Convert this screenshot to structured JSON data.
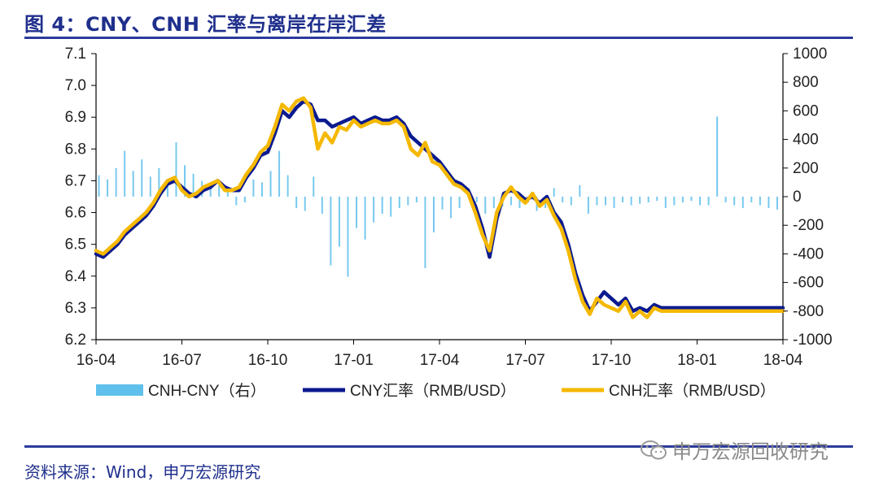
{
  "header": {
    "title": "图 4：CNY、CNH 汇率与离岸在岸汇差"
  },
  "footer": {
    "source": "资料来源：Wind，申万宏源研究"
  },
  "watermark": {
    "text": "申万宏源回收研究"
  },
  "colors": {
    "title": "#1f2f8c",
    "rule": "#2b3a9c",
    "cny": "#0b1a8f",
    "cnh": "#f5b800",
    "spread": "#5fc0ec"
  },
  "chart_data": {
    "type": "line",
    "x_ticks": [
      "16-04",
      "16-07",
      "16-10",
      "17-01",
      "17-04",
      "17-07",
      "17-10",
      "18-01",
      "18-04"
    ],
    "y_left": {
      "ticks": [
        "7.1",
        "7.0",
        "6.9",
        "6.8",
        "6.7",
        "6.6",
        "6.5",
        "6.4",
        "6.3",
        "6.2"
      ],
      "range": [
        6.2,
        7.1
      ]
    },
    "y_right": {
      "ticks": [
        "1000",
        "800",
        "600",
        "400",
        "200",
        "0",
        "-200",
        "-400",
        "-600",
        "-800",
        "-1000"
      ],
      "range": [
        -1000,
        1000
      ]
    },
    "legend": [
      "CNH-CNY（右）",
      "CNY汇率（RMB/USD）",
      "CNH汇率（RMB/USD）"
    ],
    "series": [
      {
        "name": "CNY汇率（RMB/USD）",
        "axis": "left",
        "x": [
          0,
          0.25,
          0.5,
          0.75,
          1.0,
          1.25,
          1.5,
          1.75,
          2.0,
          2.25,
          2.5,
          2.75,
          3.0,
          3.25,
          3.5,
          3.75,
          4.0,
          4.25,
          4.5,
          4.75,
          5.0,
          5.25,
          5.5,
          5.75,
          6.0,
          6.25,
          6.5,
          6.75,
          7.0,
          7.25,
          7.5,
          7.75,
          8.0,
          8.25,
          8.5,
          8.75,
          9.0,
          9.25,
          9.5,
          9.75,
          10.0,
          10.25,
          10.5,
          10.75,
          11.0,
          11.25,
          11.5,
          11.75,
          12.0,
          12.25,
          12.5,
          12.75,
          13.0,
          13.25,
          13.5,
          13.75,
          14.0,
          14.25,
          14.5,
          14.75,
          15.0,
          15.25,
          15.5,
          15.75,
          16.0,
          16.25,
          16.5,
          16.75,
          17.0,
          17.25,
          17.5,
          17.75,
          18.0,
          18.25,
          18.5,
          18.75,
          19.0,
          19.25,
          19.5,
          19.75,
          20.0,
          20.25,
          20.5,
          20.75,
          21.0,
          21.25,
          21.5,
          21.75,
          22.0,
          22.25,
          22.5,
          22.75,
          23.0,
          23.25,
          23.5,
          23.75,
          24.0
        ],
        "values": [
          6.47,
          6.46,
          6.48,
          6.5,
          6.53,
          6.55,
          6.57,
          6.59,
          6.62,
          6.66,
          6.69,
          6.7,
          6.68,
          6.66,
          6.65,
          6.67,
          6.68,
          6.7,
          6.68,
          6.67,
          6.67,
          6.71,
          6.74,
          6.78,
          6.79,
          6.85,
          6.92,
          6.9,
          6.93,
          6.95,
          6.94,
          6.89,
          6.89,
          6.87,
          6.88,
          6.89,
          6.9,
          6.88,
          6.89,
          6.9,
          6.89,
          6.89,
          6.9,
          6.88,
          6.84,
          6.82,
          6.8,
          6.78,
          6.76,
          6.73,
          6.7,
          6.69,
          6.67,
          6.62,
          6.55,
          6.46,
          6.58,
          6.66,
          6.67,
          6.66,
          6.64,
          6.65,
          6.63,
          6.65,
          6.6,
          6.57,
          6.5,
          6.41,
          6.34,
          6.29,
          6.32,
          6.35,
          6.33,
          6.31,
          6.33,
          6.29,
          6.3,
          6.29,
          6.31,
          6.3,
          6.3,
          6.3,
          6.3,
          6.3,
          6.3,
          6.3,
          6.3,
          6.3,
          6.3,
          6.3,
          6.3,
          6.3,
          6.3,
          6.3,
          6.3,
          6.3,
          6.3
        ]
      },
      {
        "name": "CNH汇率（RMB/USD）",
        "axis": "left",
        "x": [
          0,
          0.25,
          0.5,
          0.75,
          1.0,
          1.25,
          1.5,
          1.75,
          2.0,
          2.25,
          2.5,
          2.75,
          3.0,
          3.25,
          3.5,
          3.75,
          4.0,
          4.25,
          4.5,
          4.75,
          5.0,
          5.25,
          5.5,
          5.75,
          6.0,
          6.25,
          6.5,
          6.75,
          7.0,
          7.25,
          7.5,
          7.75,
          8.0,
          8.25,
          8.5,
          8.75,
          9.0,
          9.25,
          9.5,
          9.75,
          10.0,
          10.25,
          10.5,
          10.75,
          11.0,
          11.25,
          11.5,
          11.75,
          12.0,
          12.25,
          12.5,
          12.75,
          13.0,
          13.25,
          13.5,
          13.75,
          14.0,
          14.25,
          14.5,
          14.75,
          15.0,
          15.25,
          15.5,
          15.75,
          16.0,
          16.25,
          16.5,
          16.75,
          17.0,
          17.25,
          17.5,
          17.75,
          18.0,
          18.25,
          18.5,
          18.75,
          19.0,
          19.25,
          19.5,
          19.75,
          20.0,
          20.25,
          20.5,
          20.75,
          21.0,
          21.25,
          21.5,
          21.75,
          22.0,
          22.25,
          22.5,
          22.75,
          23.0,
          23.25,
          23.5,
          23.75,
          24.0
        ],
        "values": [
          6.48,
          6.47,
          6.49,
          6.51,
          6.54,
          6.56,
          6.58,
          6.6,
          6.63,
          6.67,
          6.7,
          6.71,
          6.67,
          6.65,
          6.66,
          6.68,
          6.69,
          6.7,
          6.67,
          6.67,
          6.68,
          6.72,
          6.75,
          6.79,
          6.81,
          6.87,
          6.94,
          6.92,
          6.95,
          6.96,
          6.93,
          6.8,
          6.85,
          6.82,
          6.87,
          6.86,
          6.89,
          6.87,
          6.88,
          6.89,
          6.88,
          6.88,
          6.89,
          6.87,
          6.8,
          6.78,
          6.82,
          6.76,
          6.75,
          6.72,
          6.69,
          6.68,
          6.66,
          6.6,
          6.53,
          6.48,
          6.6,
          6.65,
          6.68,
          6.65,
          6.63,
          6.66,
          6.62,
          6.64,
          6.59,
          6.55,
          6.48,
          6.39,
          6.32,
          6.28,
          6.33,
          6.31,
          6.3,
          6.29,
          6.32,
          6.27,
          6.29,
          6.27,
          6.3,
          6.29,
          6.29,
          6.29,
          6.29,
          6.29,
          6.29,
          6.29,
          6.29,
          6.29,
          6.29,
          6.29,
          6.29,
          6.29,
          6.29,
          6.29,
          6.29,
          6.29,
          6.29
        ]
      },
      {
        "name": "CNH-CNY（右）",
        "axis": "right",
        "type": "bar",
        "x": [
          0.1,
          0.4,
          0.7,
          1.0,
          1.3,
          1.6,
          1.9,
          2.2,
          2.5,
          2.8,
          3.1,
          3.4,
          3.7,
          4.0,
          4.3,
          4.6,
          4.9,
          5.2,
          5.5,
          5.8,
          6.1,
          6.4,
          6.7,
          7.0,
          7.3,
          7.6,
          7.9,
          8.2,
          8.5,
          8.8,
          9.1,
          9.4,
          9.7,
          10.0,
          10.3,
          10.6,
          10.9,
          11.2,
          11.5,
          11.8,
          12.1,
          12.4,
          12.7,
          13.0,
          13.3,
          13.6,
          13.9,
          14.2,
          14.5,
          14.8,
          15.1,
          15.4,
          15.7,
          16.0,
          16.3,
          16.6,
          16.9,
          17.2,
          17.5,
          17.8,
          18.1,
          18.4,
          18.7,
          19.0,
          19.3,
          19.6,
          19.9,
          20.2,
          20.5,
          20.8,
          21.1,
          21.4,
          21.7,
          22.0,
          22.3,
          22.6,
          22.9,
          23.2,
          23.5,
          23.8
        ],
        "values": [
          150,
          120,
          200,
          320,
          180,
          260,
          140,
          200,
          120,
          380,
          220,
          160,
          110,
          90,
          80,
          60,
          -60,
          -40,
          120,
          100,
          180,
          320,
          150,
          -80,
          -100,
          140,
          -120,
          -480,
          -350,
          -560,
          -220,
          -300,
          -180,
          -120,
          -140,
          -80,
          -60,
          -40,
          -500,
          -250,
          -90,
          -150,
          -80,
          60,
          -40,
          -120,
          -80,
          -70,
          -60,
          -80,
          -40,
          -100,
          -80,
          60,
          -40,
          -60,
          80,
          -120,
          -60,
          -60,
          -80,
          -40,
          -60,
          -50,
          -40,
          -30,
          -80,
          -60,
          -40,
          -30,
          -60,
          -60,
          560,
          -40,
          -60,
          -80,
          -40,
          -60,
          -80,
          -90
        ]
      }
    ]
  }
}
